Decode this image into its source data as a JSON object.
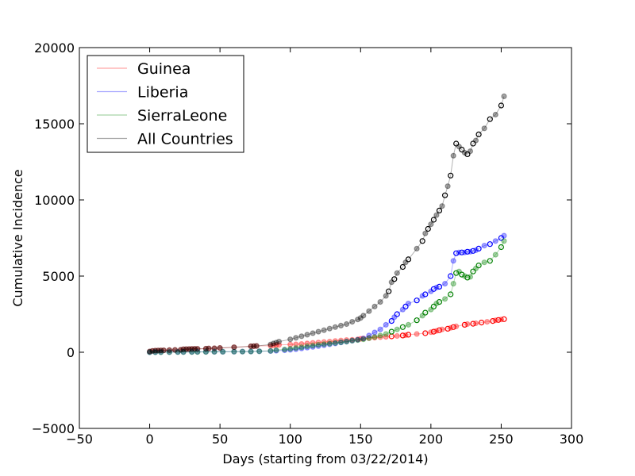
{
  "chart_data": {
    "type": "scatter",
    "xlabel": "Days (starting from 03/22/2014)",
    "ylabel": "Cumulative Incidence",
    "xlim": [
      -50,
      300
    ],
    "ylim": [
      -5000,
      20000
    ],
    "xticks": [
      -50,
      0,
      50,
      100,
      150,
      200,
      250,
      300
    ],
    "yticks": [
      -5000,
      0,
      5000,
      10000,
      15000,
      20000
    ],
    "xtick_labels": [
      "−50",
      "0",
      "50",
      "100",
      "150",
      "200",
      "250",
      "300"
    ],
    "ytick_labels": [
      "−5000",
      "0",
      "5000",
      "10000",
      "15000",
      "20000"
    ],
    "grid": false,
    "legend_position": "top-left",
    "series": [
      {
        "name": "Guinea",
        "color": "#ff0000",
        "x": [
          0,
          2,
          4,
          6,
          8,
          10,
          14,
          18,
          22,
          24,
          26,
          28,
          30,
          32,
          34,
          40,
          42,
          46,
          50,
          60,
          72,
          74,
          76,
          86,
          88,
          90,
          92,
          100,
          104,
          108,
          112,
          116,
          120,
          124,
          128,
          132,
          136,
          140,
          144,
          148,
          150,
          152,
          156,
          160,
          164,
          168,
          172,
          176,
          180,
          182,
          184,
          190,
          196,
          200,
          202,
          204,
          206,
          208,
          212,
          214,
          216,
          218,
          224,
          226,
          230,
          232,
          236,
          240,
          244,
          246,
          248,
          250,
          252
        ],
        "y": [
          49,
          86,
          103,
          112,
          122,
          127,
          143,
          151,
          158,
          197,
          203,
          208,
          218,
          224,
          226,
          233,
          248,
          258,
          281,
          328,
          390,
          398,
          413,
          427,
          460,
          472,
          485,
          506,
          519,
          543,
          578,
          615,
          640,
          670,
          700,
          740,
          770,
          800,
          820,
          850,
          880,
          900,
          930,
          960,
          990,
          1010,
          1040,
          1070,
          1100,
          1120,
          1150,
          1200,
          1250,
          1320,
          1350,
          1400,
          1450,
          1500,
          1540,
          1600,
          1650,
          1700,
          1800,
          1850,
          1870,
          1900,
          1950,
          2000,
          2050,
          2100,
          2120,
          2150,
          2170
        ]
      },
      {
        "name": "Liberia",
        "color": "#0000ff",
        "x": [
          0,
          4,
          8,
          14,
          20,
          24,
          30,
          34,
          40,
          46,
          52,
          60,
          66,
          72,
          78,
          86,
          90,
          96,
          100,
          104,
          108,
          112,
          116,
          120,
          124,
          128,
          132,
          136,
          140,
          144,
          148,
          152,
          156,
          160,
          164,
          168,
          172,
          174,
          176,
          180,
          182,
          184,
          190,
          194,
          196,
          200,
          202,
          204,
          206,
          210,
          214,
          216,
          218,
          220,
          222,
          224,
          226,
          228,
          230,
          232,
          234,
          238,
          242,
          246,
          250,
          252
        ],
        "y": [
          0,
          5,
          8,
          12,
          14,
          18,
          22,
          24,
          28,
          30,
          32,
          35,
          40,
          45,
          60,
          80,
          100,
          130,
          160,
          200,
          250,
          300,
          350,
          400,
          460,
          520,
          580,
          640,
          700,
          760,
          820,
          900,
          1100,
          1300,
          1500,
          1800,
          2050,
          2300,
          2500,
          2800,
          3000,
          3200,
          3400,
          3700,
          3800,
          4000,
          4150,
          4250,
          4300,
          4500,
          5000,
          6000,
          6500,
          6550,
          6550,
          6550,
          6600,
          6600,
          6650,
          6700,
          6800,
          7000,
          7100,
          7300,
          7500,
          7650
        ]
      },
      {
        "name": "SierraLeone",
        "color": "#008000",
        "x": [
          0,
          4,
          8,
          14,
          20,
          24,
          30,
          34,
          40,
          46,
          52,
          60,
          66,
          72,
          78,
          86,
          90,
          96,
          100,
          104,
          108,
          112,
          116,
          120,
          124,
          128,
          132,
          136,
          140,
          144,
          148,
          152,
          156,
          160,
          164,
          168,
          172,
          176,
          180,
          184,
          190,
          194,
          196,
          200,
          202,
          204,
          206,
          210,
          214,
          216,
          218,
          220,
          222,
          224,
          226,
          228,
          230,
          232,
          234,
          238,
          242,
          246,
          250,
          252
        ],
        "y": [
          0,
          0,
          2,
          6,
          10,
          12,
          16,
          18,
          22,
          26,
          30,
          35,
          40,
          45,
          60,
          90,
          140,
          180,
          230,
          280,
          330,
          390,
          440,
          490,
          530,
          570,
          610,
          650,
          700,
          760,
          800,
          850,
          920,
          1000,
          1100,
          1200,
          1350,
          1500,
          1650,
          1800,
          2100,
          2400,
          2600,
          2800,
          3000,
          3200,
          3300,
          3500,
          3800,
          4500,
          5200,
          5300,
          5100,
          5000,
          4900,
          4950,
          5300,
          5500,
          5700,
          5900,
          6000,
          6400,
          6900,
          7300
        ]
      },
      {
        "name": "All Countries",
        "color": "#000000",
        "x": [
          0,
          2,
          4,
          6,
          8,
          10,
          14,
          18,
          22,
          24,
          26,
          28,
          30,
          32,
          34,
          40,
          42,
          46,
          50,
          60,
          72,
          74,
          76,
          86,
          88,
          90,
          92,
          100,
          104,
          108,
          112,
          116,
          120,
          124,
          128,
          132,
          136,
          140,
          144,
          148,
          150,
          152,
          156,
          160,
          164,
          168,
          170,
          172,
          174,
          176,
          180,
          182,
          184,
          190,
          194,
          196,
          198,
          200,
          202,
          204,
          206,
          208,
          210,
          212,
          214,
          216,
          218,
          220,
          222,
          224,
          226,
          228,
          230,
          232,
          234,
          238,
          242,
          246,
          250,
          252
        ],
        "y": [
          49,
          86,
          103,
          112,
          122,
          127,
          143,
          151,
          158,
          197,
          203,
          208,
          218,
          224,
          226,
          233,
          248,
          258,
          281,
          328,
          390,
          398,
          413,
          510,
          580,
          630,
          700,
          850,
          950,
          1050,
          1150,
          1250,
          1350,
          1450,
          1550,
          1650,
          1750,
          1850,
          2000,
          2150,
          2250,
          2400,
          2700,
          3000,
          3300,
          3700,
          4000,
          4600,
          4800,
          5200,
          5600,
          5900,
          6100,
          6800,
          7300,
          7800,
          8100,
          8400,
          8700,
          9000,
          9300,
          9600,
          10300,
          10900,
          11600,
          12900,
          13700,
          13500,
          13300,
          13100,
          13000,
          13200,
          13700,
          13900,
          14300,
          14700,
          15300,
          15600,
          16200,
          16800
        ]
      }
    ]
  }
}
